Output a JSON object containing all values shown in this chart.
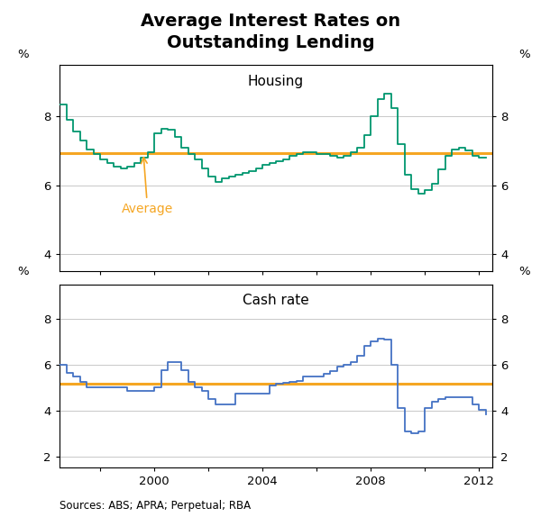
{
  "title": "Average Interest Rates on\nOutstanding Lending",
  "title_fontsize": 14,
  "subtitle_housing": "Housing",
  "subtitle_cash": "Cash rate",
  "source_text": "Sources: ABS; APRA; Perpetual; RBA",
  "housing_avg": 6.93,
  "cash_avg": 5.18,
  "orange_color": "#F5A623",
  "green_color": "#00966E",
  "blue_color": "#4472C4",
  "housing_ylim": [
    3.5,
    9.5
  ],
  "housing_yticks": [
    4,
    6,
    8
  ],
  "cash_ylim": [
    1.5,
    9.5
  ],
  "cash_yticks": [
    2,
    4,
    6,
    8
  ],
  "xmin": 1996.5,
  "xmax": 2012.5,
  "xticks": [
    1998,
    2000,
    2002,
    2004,
    2006,
    2008,
    2010,
    2012
  ],
  "xticklabels": [
    "",
    "2000",
    "",
    "2004",
    "",
    "2008",
    "",
    "2012"
  ],
  "housing_x": [
    1996.5,
    1996.75,
    1997.0,
    1997.25,
    1997.5,
    1997.75,
    1998.0,
    1998.25,
    1998.5,
    1998.75,
    1999.0,
    1999.25,
    1999.5,
    1999.75,
    2000.0,
    2000.25,
    2000.5,
    2000.75,
    2001.0,
    2001.25,
    2001.5,
    2001.75,
    2002.0,
    2002.25,
    2002.5,
    2002.75,
    2003.0,
    2003.25,
    2003.5,
    2003.75,
    2004.0,
    2004.25,
    2004.5,
    2004.75,
    2005.0,
    2005.25,
    2005.5,
    2005.75,
    2006.0,
    2006.25,
    2006.5,
    2006.75,
    2007.0,
    2007.25,
    2007.5,
    2007.75,
    2008.0,
    2008.25,
    2008.5,
    2008.75,
    2009.0,
    2009.25,
    2009.5,
    2009.75,
    2010.0,
    2010.25,
    2010.5,
    2010.75,
    2011.0,
    2011.25,
    2011.5,
    2011.75,
    2012.0,
    2012.25
  ],
  "housing_y": [
    8.35,
    7.9,
    7.55,
    7.3,
    7.05,
    6.9,
    6.75,
    6.65,
    6.55,
    6.5,
    6.55,
    6.65,
    6.8,
    6.95,
    7.5,
    7.65,
    7.6,
    7.4,
    7.1,
    6.9,
    6.75,
    6.5,
    6.25,
    6.1,
    6.2,
    6.25,
    6.3,
    6.35,
    6.4,
    6.5,
    6.6,
    6.65,
    6.7,
    6.75,
    6.85,
    6.9,
    6.95,
    6.95,
    6.9,
    6.9,
    6.85,
    6.8,
    6.85,
    6.95,
    7.1,
    7.45,
    8.0,
    8.5,
    8.65,
    8.25,
    7.2,
    6.3,
    5.9,
    5.75,
    5.85,
    6.05,
    6.45,
    6.85,
    7.05,
    7.1,
    7.0,
    6.85,
    6.8,
    6.8
  ],
  "cash_x": [
    1996.5,
    1996.75,
    1997.0,
    1997.25,
    1997.5,
    1997.75,
    1998.0,
    1998.25,
    1998.5,
    1998.75,
    1999.0,
    1999.25,
    1999.5,
    1999.75,
    2000.0,
    2000.25,
    2000.5,
    2000.75,
    2001.0,
    2001.25,
    2001.5,
    2001.75,
    2002.0,
    2002.25,
    2002.5,
    2002.75,
    2003.0,
    2003.25,
    2003.5,
    2003.75,
    2004.0,
    2004.25,
    2004.5,
    2004.75,
    2005.0,
    2005.25,
    2005.5,
    2005.75,
    2006.0,
    2006.25,
    2006.5,
    2006.75,
    2007.0,
    2007.25,
    2007.5,
    2007.75,
    2008.0,
    2008.25,
    2008.5,
    2008.75,
    2009.0,
    2009.25,
    2009.5,
    2009.75,
    2010.0,
    2010.25,
    2010.5,
    2010.75,
    2011.0,
    2011.25,
    2011.5,
    2011.75,
    2012.0,
    2012.25
  ],
  "cash_y": [
    6.0,
    5.65,
    5.5,
    5.25,
    5.0,
    5.0,
    5.0,
    5.0,
    5.0,
    5.0,
    4.85,
    4.85,
    4.85,
    4.85,
    5.0,
    5.75,
    6.1,
    6.1,
    5.75,
    5.25,
    5.0,
    4.85,
    4.5,
    4.25,
    4.25,
    4.25,
    4.75,
    4.75,
    4.75,
    4.75,
    4.75,
    5.1,
    5.15,
    5.2,
    5.25,
    5.3,
    5.5,
    5.5,
    5.5,
    5.6,
    5.7,
    5.9,
    6.0,
    6.1,
    6.4,
    6.8,
    7.0,
    7.15,
    7.1,
    6.0,
    4.1,
    3.1,
    3.0,
    3.1,
    4.1,
    4.4,
    4.5,
    4.6,
    4.6,
    4.6,
    4.6,
    4.25,
    4.05,
    3.85
  ]
}
